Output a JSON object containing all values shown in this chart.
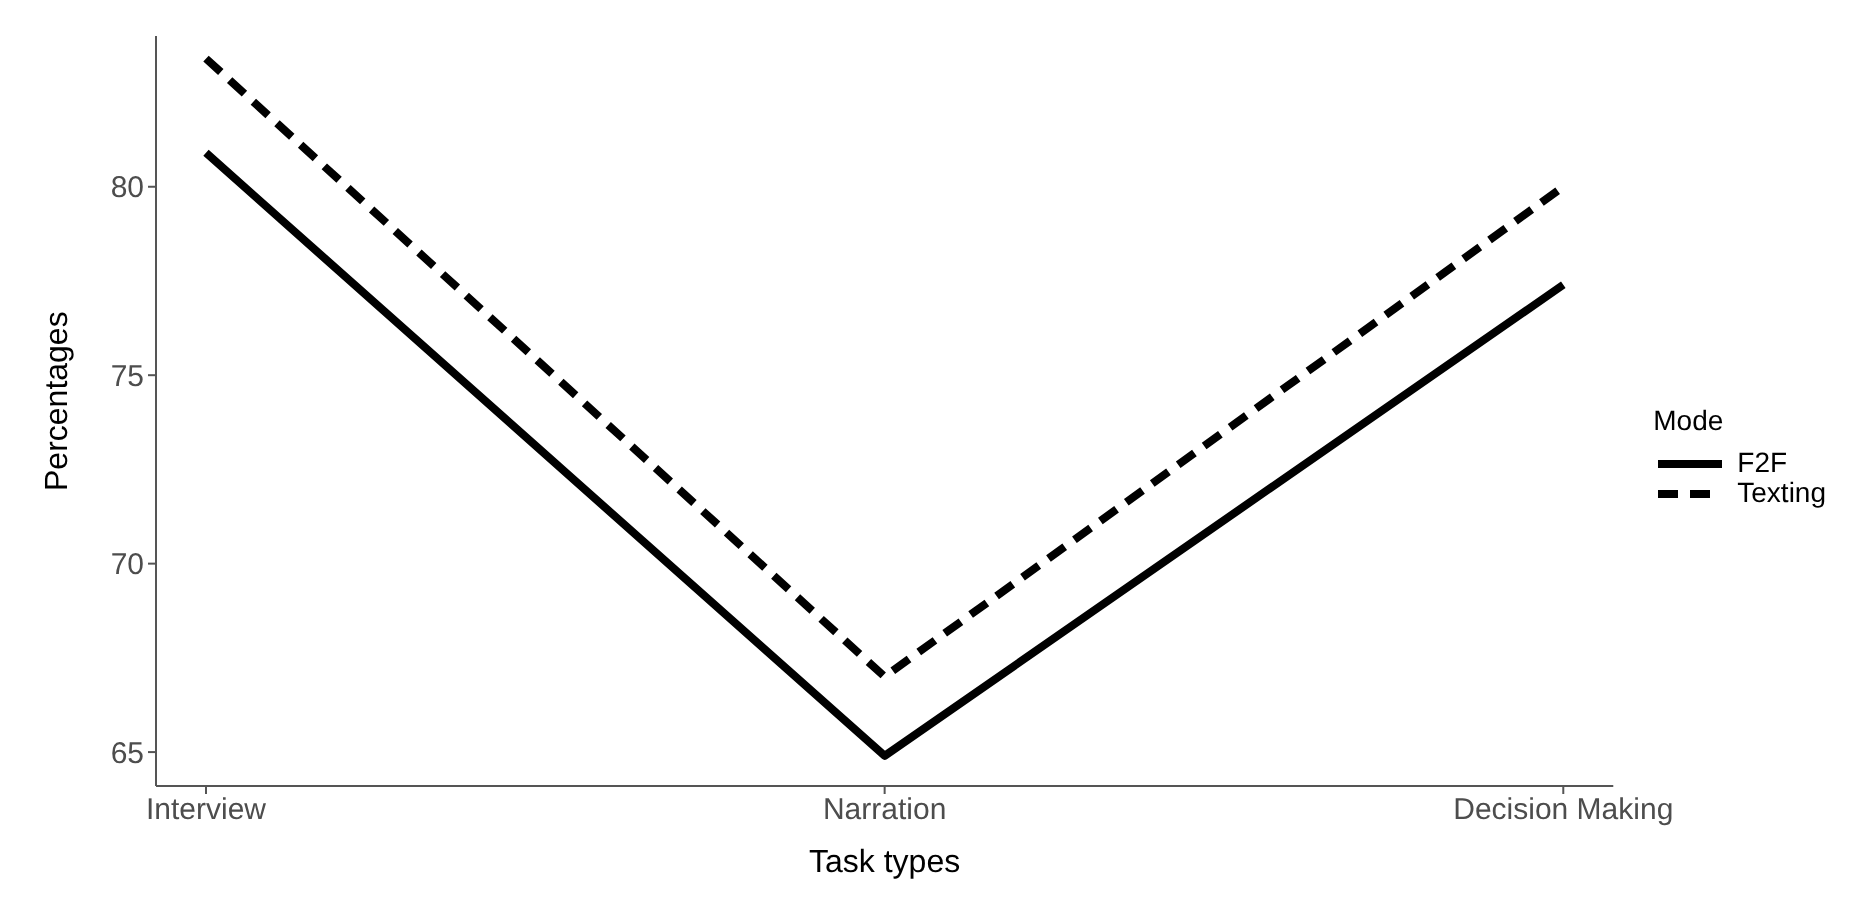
{
  "chart_data": {
    "type": "line",
    "xlabel": "Task types",
    "ylabel": "Percentages",
    "categories": [
      "Interview",
      "Narration",
      "Decision Making"
    ],
    "series": [
      {
        "name": "F2F",
        "color": "#000000",
        "line_style": "solid",
        "values": [
          80.9,
          64.9,
          77.4
        ]
      },
      {
        "name": "Texting",
        "color": "#000000",
        "line_style": "dashed",
        "values": [
          83.4,
          67.0,
          80.0
        ]
      }
    ],
    "ylim": [
      64.1,
      84.0
    ],
    "yticks": [
      65,
      70,
      75,
      80
    ],
    "legend": "right",
    "legend_title": "Mode",
    "marker": "none"
  }
}
